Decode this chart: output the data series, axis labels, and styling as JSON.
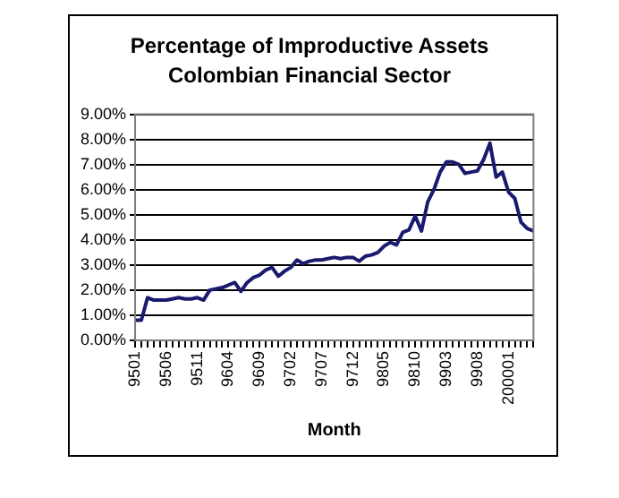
{
  "chart_data": {
    "type": "line",
    "title": "Percentage of Improductive Assets",
    "subtitle": "Colombian Financial Sector",
    "xlabel": "Month",
    "categories": [
      "9501",
      null,
      null,
      null,
      null,
      "9506",
      null,
      null,
      null,
      null,
      "9511",
      null,
      null,
      null,
      null,
      "9604",
      null,
      null,
      null,
      null,
      "9609",
      null,
      null,
      null,
      null,
      "9702",
      null,
      null,
      null,
      null,
      "9707",
      null,
      null,
      null,
      null,
      "9712",
      null,
      null,
      null,
      null,
      "9805",
      null,
      null,
      null,
      null,
      "9810",
      null,
      null,
      null,
      null,
      "9903",
      null,
      null,
      null,
      null,
      "9908",
      null,
      null,
      null,
      null,
      "200001",
      null,
      null,
      null,
      null
    ],
    "series": [
      {
        "color": "#1a1a6e",
        "values": [
          0.8,
          0.8,
          1.7,
          1.6,
          1.6,
          1.6,
          1.65,
          1.7,
          1.65,
          1.65,
          1.7,
          1.6,
          2.0,
          2.05,
          2.1,
          2.2,
          2.3,
          1.95,
          2.3,
          2.5,
          2.6,
          2.8,
          2.9,
          2.55,
          2.75,
          2.9,
          3.2,
          3.05,
          3.15,
          3.2,
          3.2,
          3.25,
          3.3,
          3.25,
          3.3,
          3.3,
          3.15,
          3.35,
          3.4,
          3.5,
          3.75,
          3.9,
          3.8,
          4.3,
          4.4,
          4.95,
          4.35,
          5.5,
          6.0,
          6.7,
          7.1,
          7.1,
          7.0,
          6.65,
          6.7,
          6.75,
          7.2,
          7.85,
          6.5,
          6.7,
          5.9,
          5.65,
          4.7,
          4.45,
          4.35
        ]
      }
    ],
    "ylim": [
      0,
      9
    ],
    "yticks": [
      {
        "value": 0,
        "label": "0.00%"
      },
      {
        "value": 1,
        "label": "1.00%"
      },
      {
        "value": 2,
        "label": "2.00%"
      },
      {
        "value": 3,
        "label": "3.00%"
      },
      {
        "value": 4,
        "label": "4.00%"
      },
      {
        "value": 5,
        "label": "5.00%"
      },
      {
        "value": 6,
        "label": "6.00%"
      },
      {
        "value": 7,
        "label": "7.00%"
      },
      {
        "value": 8,
        "label": "8.00%"
      },
      {
        "value": 9,
        "label": "9.00%"
      }
    ],
    "grid": "y",
    "legend": false,
    "marker": "none",
    "line_style": "solid"
  }
}
